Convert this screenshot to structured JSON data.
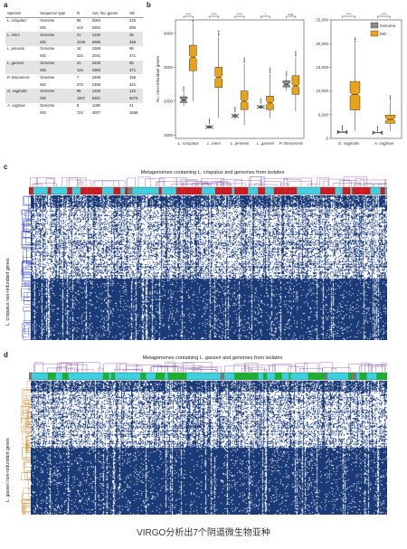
{
  "panel_labels": {
    "a": "a",
    "b": "b",
    "c": "c",
    "d": "d"
  },
  "table": {
    "headers": [
      "Species",
      "Sequence type",
      "N",
      "Ave. No. genes",
      "SD"
    ],
    "rows": [
      {
        "species": "L. crispatus",
        "type": "Genome",
        "n": "56",
        "genes": "2064",
        "sd": "225",
        "shade": false
      },
      {
        "species": "",
        "type": "MG",
        "n": "413",
        "genes": "3262",
        "sd": "666",
        "shade": false
      },
      {
        "species": "L. iners",
        "type": "Genome",
        "n": "21",
        "genes": "1236",
        "sd": "45",
        "shade": true
      },
      {
        "species": "",
        "type": "MG",
        "n": "1028",
        "genes": "2699",
        "sd": "456",
        "shade": true
      },
      {
        "species": "L. jensenii",
        "type": "Genome",
        "n": "16",
        "genes": "1566",
        "sd": "86",
        "shade": false
      },
      {
        "species": "",
        "type": "MG",
        "n": "334",
        "genes": "2041",
        "sd": "471",
        "shade": false
      },
      {
        "species": "L. gasseri",
        "type": "Genome",
        "n": "31",
        "genes": "1830",
        "sd": "86",
        "shade": true
      },
      {
        "species": "",
        "type": "MG",
        "n": "134",
        "genes": "1966",
        "sd": "371",
        "shade": true
      },
      {
        "species": "P. timonensis",
        "type": "Genome",
        "n": "7",
        "genes": "2498",
        "sd": "156",
        "shade": false
      },
      {
        "species": "",
        "type": "MG",
        "n": "373",
        "genes": "2468",
        "sd": "421",
        "shade": false
      },
      {
        "species": "G. vaginalis",
        "type": "Genome",
        "n": "95",
        "genes": "1329",
        "sd": "122",
        "shade": true
      },
      {
        "species": "",
        "type": "MG",
        "n": "1007",
        "genes": "9301",
        "sd": "5079",
        "shade": true
      },
      {
        "species": "A. vaginae",
        "type": "Genome",
        "n": "6",
        "genes": "1198",
        "sd": "41",
        "shade": false
      },
      {
        "species": "",
        "type": "MG",
        "n": "724",
        "genes": "4007",
        "sd": "1658",
        "shade": false
      }
    ]
  },
  "chart_data": [
    {
      "type": "box",
      "ylabel": "No. non-redundant genes",
      "ylim": [
        900,
        4400
      ],
      "yticks": [
        "1000",
        "2000",
        "3000",
        "4000"
      ],
      "categories": [
        "L. crispatus",
        "L. iners",
        "L. jensenii",
        "L. gasseri",
        "P. timonensis"
      ],
      "significance": [
        "****",
        "****",
        "****",
        "*",
        "n.s."
      ],
      "series": [
        {
          "name": "Genome",
          "values": [
            {
              "min": 1860,
              "q1": 1960,
              "median": 2030,
              "q3": 2130,
              "max": 2250
            },
            {
              "min": 1180,
              "q1": 1210,
              "median": 1236,
              "q3": 1270,
              "max": 1300
            },
            {
              "min": 1460,
              "q1": 1530,
              "median": 1566,
              "q3": 1600,
              "max": 1650
            },
            {
              "min": 1760,
              "q1": 1800,
              "median": 1830,
              "q3": 1860,
              "max": 1900
            },
            {
              "min": 2300,
              "q1": 2420,
              "median": 2498,
              "q3": 2600,
              "max": 2700
            }
          ]
        },
        {
          "name": "MG",
          "values": [
            {
              "min": 2000,
              "q1": 2900,
              "median": 3300,
              "q3": 3650,
              "max": 4300
            },
            {
              "min": 1500,
              "q1": 2400,
              "median": 2700,
              "q3": 3000,
              "max": 3900
            },
            {
              "min": 1300,
              "q1": 1750,
              "median": 2000,
              "q3": 2300,
              "max": 3100
            },
            {
              "min": 1500,
              "q1": 1750,
              "median": 1950,
              "q3": 2150,
              "max": 2800
            },
            {
              "min": 1700,
              "q1": 2200,
              "median": 2450,
              "q3": 2750,
              "max": 3300
            }
          ]
        }
      ]
    },
    {
      "type": "box",
      "ylim": [
        0,
        25000
      ],
      "yticks": [
        "0",
        "5,000",
        "10,000",
        "15,000",
        "20,000",
        "25,000"
      ],
      "categories": [
        "G. vaginalis",
        "A. vaginae"
      ],
      "significance": [
        "****",
        "****"
      ],
      "legend": [
        "Genome",
        "MG"
      ],
      "legend_position": "top-right",
      "series": [
        {
          "name": "Genome",
          "values": [
            {
              "min": 1200,
              "q1": 1280,
              "median": 1329,
              "q3": 1380,
              "max": 1450
            },
            {
              "min": 1150,
              "q1": 1180,
              "median": 1198,
              "q3": 1220,
              "max": 1250
            }
          ]
        },
        {
          "name": "MG",
          "values": [
            {
              "min": 1500,
              "q1": 6000,
              "median": 9300,
              "q3": 12000,
              "max": 20000
            },
            {
              "min": 1500,
              "q1": 3200,
              "median": 4000,
              "q3": 4900,
              "max": 7800
            }
          ]
        }
      ]
    }
  ],
  "heatmap_c": {
    "title": "Metagenomes containing L. crispatus and genomes from isolates",
    "ylabel": "L. crispatus non-redundant genes"
  },
  "heatmap_d": {
    "title": "Metagenomes containing L. gasseri and genomes from isolates",
    "ylabel": "L. gasseri non-redundant genes"
  },
  "colors": {
    "genome": "#8a8a8a",
    "mg": "#e8a317",
    "heat": "#1a3b78",
    "cyan": "#3fd0e0",
    "red": "#cc1b20",
    "green": "#22aa33"
  },
  "caption": "VIRGO分析出7个阴道微生物亚种"
}
